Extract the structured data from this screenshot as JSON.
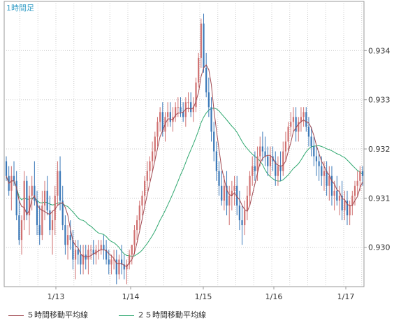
{
  "chart_data": {
    "type": "candlestick",
    "title": "1時間足",
    "x_tick_labels": [
      "1/13",
      "1/14",
      "1/15",
      "1/16",
      "1/17"
    ],
    "y_tick_labels": [
      "0.934",
      "0.933",
      "0.932",
      "0.931",
      "0.930"
    ],
    "y_ticks": [
      0.934,
      0.933,
      0.932,
      0.931,
      0.93
    ],
    "ylim": [
      0.9292,
      0.935
    ],
    "grid": true,
    "legend_position": "bottom-left",
    "series": [
      {
        "name": "５時間移動平均線",
        "color": "#a04850"
      },
      {
        "name": "２５時間移動平均線",
        "color": "#30a870"
      }
    ],
    "colors": {
      "up": "#d07070",
      "down": "#3a78b8",
      "grid": "#cccccc",
      "axis": "#999999"
    },
    "candles": [
      [
        0.93175,
        0.93185,
        0.93135,
        0.93145
      ],
      [
        0.93145,
        0.93165,
        0.93105,
        0.93115
      ],
      [
        0.93115,
        0.93165,
        0.93075,
        0.93145
      ],
      [
        0.93145,
        0.93175,
        0.93125,
        0.93135
      ],
      [
        0.93135,
        0.93155,
        0.93055,
        0.93065
      ],
      [
        0.93065,
        0.93095,
        0.93005,
        0.93015
      ],
      [
        0.93015,
        0.93065,
        0.92985,
        0.93055
      ],
      [
        0.93055,
        0.93155,
        0.93035,
        0.93135
      ],
      [
        0.93135,
        0.93145,
        0.93055,
        0.93065
      ],
      [
        0.93065,
        0.93125,
        0.93025,
        0.93105
      ],
      [
        0.93105,
        0.93145,
        0.93075,
        0.93125
      ],
      [
        0.93125,
        0.93175,
        0.93085,
        0.93095
      ],
      [
        0.93095,
        0.93115,
        0.93025,
        0.93045
      ],
      [
        0.93045,
        0.93085,
        0.93005,
        0.93025
      ],
      [
        0.93025,
        0.93115,
        0.93015,
        0.93085
      ],
      [
        0.93085,
        0.93135,
        0.93055,
        0.93115
      ],
      [
        0.93115,
        0.93145,
        0.93065,
        0.93075
      ],
      [
        0.93075,
        0.93105,
        0.93025,
        0.93035
      ],
      [
        0.93035,
        0.93075,
        0.92985,
        0.93055
      ],
      [
        0.93055,
        0.93125,
        0.93025,
        0.93105
      ],
      [
        0.93105,
        0.93175,
        0.93085,
        0.93155
      ],
      [
        0.93155,
        0.93185,
        0.93075,
        0.93095
      ],
      [
        0.93095,
        0.93125,
        0.93035,
        0.93045
      ],
      [
        0.93045,
        0.93065,
        0.92985,
        0.93005
      ],
      [
        0.93005,
        0.93045,
        0.92975,
        0.93025
      ],
      [
        0.93025,
        0.93055,
        0.92995,
        0.93015
      ],
      [
        0.93015,
        0.93035,
        0.92955,
        0.92975
      ],
      [
        0.92975,
        0.93015,
        0.92935,
        0.92995
      ],
      [
        0.92995,
        0.93015,
        0.92965,
        0.92985
      ],
      [
        0.92985,
        0.93005,
        0.92945,
        0.92965
      ],
      [
        0.92965,
        0.93005,
        0.92945,
        0.92985
      ],
      [
        0.92985,
        0.93005,
        0.92955,
        0.92975
      ],
      [
        0.92975,
        0.93005,
        0.92945,
        0.92995
      ],
      [
        0.92995,
        0.93005,
        0.92975,
        0.92995
      ],
      [
        0.92995,
        0.93015,
        0.92965,
        0.92985
      ],
      [
        0.92985,
        0.93005,
        0.92965,
        0.92995
      ],
      [
        0.92995,
        0.93015,
        0.92975,
        0.92995
      ],
      [
        0.92995,
        0.93015,
        0.92985,
        0.93005
      ],
      [
        0.93005,
        0.93025,
        0.92975,
        0.92995
      ],
      [
        0.92995,
        0.93015,
        0.92965,
        0.92975
      ],
      [
        0.92975,
        0.92995,
        0.92945,
        0.92965
      ],
      [
        0.92965,
        0.92985,
        0.92945,
        0.92975
      ],
      [
        0.92975,
        0.92995,
        0.92955,
        0.92975
      ],
      [
        0.92975,
        0.92995,
        0.92925,
        0.92945
      ],
      [
        0.92945,
        0.92985,
        0.92935,
        0.92975
      ],
      [
        0.92975,
        0.93005,
        0.92945,
        0.92965
      ],
      [
        0.92965,
        0.92985,
        0.92935,
        0.92955
      ],
      [
        0.92955,
        0.92975,
        0.92925,
        0.92965
      ],
      [
        0.92965,
        0.92995,
        0.92955,
        0.92985
      ],
      [
        0.92985,
        0.93005,
        0.92965,
        0.93005
      ],
      [
        0.93005,
        0.93045,
        0.92985,
        0.93035
      ],
      [
        0.93035,
        0.93065,
        0.93015,
        0.93055
      ],
      [
        0.93055,
        0.93095,
        0.93035,
        0.93085
      ],
      [
        0.93085,
        0.93115,
        0.93065,
        0.93105
      ],
      [
        0.93105,
        0.93145,
        0.93085,
        0.93135
      ],
      [
        0.93135,
        0.93175,
        0.93115,
        0.93155
      ],
      [
        0.93155,
        0.93185,
        0.93135,
        0.93175
      ],
      [
        0.93175,
        0.93215,
        0.93155,
        0.93195
      ],
      [
        0.93195,
        0.93235,
        0.93175,
        0.93225
      ],
      [
        0.93225,
        0.93265,
        0.93205,
        0.93255
      ],
      [
        0.93255,
        0.93285,
        0.93235,
        0.93275
      ],
      [
        0.93275,
        0.93295,
        0.93225,
        0.93235
      ],
      [
        0.93235,
        0.93275,
        0.93215,
        0.93265
      ],
      [
        0.93265,
        0.93295,
        0.93245,
        0.93275
      ],
      [
        0.93275,
        0.93295,
        0.93245,
        0.93255
      ],
      [
        0.93255,
        0.93285,
        0.93235,
        0.93265
      ],
      [
        0.93265,
        0.93295,
        0.93255,
        0.93285
      ],
      [
        0.93285,
        0.93305,
        0.93265,
        0.93285
      ],
      [
        0.93285,
        0.93305,
        0.93265,
        0.93275
      ],
      [
        0.93275,
        0.93295,
        0.93255,
        0.93265
      ],
      [
        0.93265,
        0.93305,
        0.93245,
        0.93295
      ],
      [
        0.93295,
        0.93315,
        0.93275,
        0.93295
      ],
      [
        0.93295,
        0.93315,
        0.93265,
        0.93275
      ],
      [
        0.93275,
        0.93305,
        0.93255,
        0.93285
      ],
      [
        0.93285,
        0.93345,
        0.93275,
        0.93335
      ],
      [
        0.93335,
        0.93395,
        0.93325,
        0.93385
      ],
      [
        0.93385,
        0.93465,
        0.93365,
        0.93455
      ],
      [
        0.93455,
        0.93475,
        0.93355,
        0.93365
      ],
      [
        0.93365,
        0.93395,
        0.93305,
        0.93315
      ],
      [
        0.93315,
        0.93345,
        0.93265,
        0.93285
      ],
      [
        0.93285,
        0.93305,
        0.93215,
        0.93235
      ],
      [
        0.93235,
        0.93255,
        0.93175,
        0.93195
      ],
      [
        0.93195,
        0.93215,
        0.93135,
        0.93155
      ],
      [
        0.93155,
        0.93175,
        0.93105,
        0.93125
      ],
      [
        0.93125,
        0.93155,
        0.93085,
        0.93095
      ],
      [
        0.93095,
        0.93145,
        0.93075,
        0.93125
      ],
      [
        0.93125,
        0.93155,
        0.93065,
        0.93085
      ],
      [
        0.93085,
        0.93125,
        0.93045,
        0.93105
      ],
      [
        0.93105,
        0.93135,
        0.93075,
        0.93115
      ],
      [
        0.93115,
        0.93145,
        0.93085,
        0.93125
      ],
      [
        0.93125,
        0.93145,
        0.93065,
        0.93085
      ],
      [
        0.93085,
        0.93115,
        0.93035,
        0.93055
      ],
      [
        0.93055,
        0.93085,
        0.93005,
        0.93045
      ],
      [
        0.93045,
        0.93095,
        0.93025,
        0.93075
      ],
      [
        0.93075,
        0.93125,
        0.93055,
        0.93105
      ],
      [
        0.93105,
        0.93155,
        0.93085,
        0.93145
      ],
      [
        0.93145,
        0.93185,
        0.93125,
        0.93165
      ],
      [
        0.93165,
        0.93195,
        0.93135,
        0.93155
      ],
      [
        0.93155,
        0.93205,
        0.93135,
        0.93185
      ],
      [
        0.93185,
        0.93225,
        0.93165,
        0.93205
      ],
      [
        0.93205,
        0.93235,
        0.93175,
        0.93195
      ],
      [
        0.93195,
        0.93225,
        0.93165,
        0.93185
      ],
      [
        0.93185,
        0.93205,
        0.93145,
        0.93165
      ],
      [
        0.93165,
        0.93205,
        0.93145,
        0.93185
      ],
      [
        0.93185,
        0.93205,
        0.93155,
        0.93175
      ],
      [
        0.93175,
        0.93195,
        0.93125,
        0.93145
      ],
      [
        0.93145,
        0.93185,
        0.93125,
        0.93165
      ],
      [
        0.93165,
        0.93195,
        0.93135,
        0.93155
      ],
      [
        0.93155,
        0.93215,
        0.93145,
        0.93195
      ],
      [
        0.93195,
        0.93235,
        0.93175,
        0.93215
      ],
      [
        0.93215,
        0.93255,
        0.93195,
        0.93245
      ],
      [
        0.93245,
        0.93275,
        0.93225,
        0.93255
      ],
      [
        0.93255,
        0.93285,
        0.93235,
        0.93265
      ],
      [
        0.93265,
        0.93285,
        0.93215,
        0.93235
      ],
      [
        0.93235,
        0.93265,
        0.93215,
        0.93255
      ],
      [
        0.93255,
        0.93285,
        0.93235,
        0.93265
      ],
      [
        0.93265,
        0.93285,
        0.93245,
        0.93275
      ],
      [
        0.93275,
        0.93285,
        0.93235,
        0.93245
      ],
      [
        0.93245,
        0.93265,
        0.93205,
        0.93225
      ],
      [
        0.93225,
        0.93245,
        0.93185,
        0.93205
      ],
      [
        0.93205,
        0.93225,
        0.93165,
        0.93185
      ],
      [
        0.93185,
        0.93205,
        0.93145,
        0.93175
      ],
      [
        0.93175,
        0.93195,
        0.93135,
        0.93165
      ],
      [
        0.93165,
        0.93185,
        0.93125,
        0.93145
      ],
      [
        0.93145,
        0.93175,
        0.93115,
        0.93155
      ],
      [
        0.93155,
        0.93175,
        0.93105,
        0.93125
      ],
      [
        0.93125,
        0.93165,
        0.93095,
        0.93145
      ],
      [
        0.93145,
        0.93165,
        0.93085,
        0.93105
      ],
      [
        0.93105,
        0.93135,
        0.93075,
        0.93115
      ],
      [
        0.93115,
        0.93145,
        0.93085,
        0.93095
      ],
      [
        0.93095,
        0.93125,
        0.93065,
        0.93105
      ],
      [
        0.93105,
        0.93135,
        0.93055,
        0.93075
      ],
      [
        0.93075,
        0.93115,
        0.93055,
        0.93095
      ],
      [
        0.93095,
        0.93115,
        0.93045,
        0.93065
      ],
      [
        0.93065,
        0.93095,
        0.93045,
        0.93085
      ],
      [
        0.93085,
        0.93115,
        0.93065,
        0.93105
      ],
      [
        0.93105,
        0.93135,
        0.93085,
        0.93125
      ],
      [
        0.93125,
        0.93155,
        0.93105,
        0.93135
      ],
      [
        0.93135,
        0.93165,
        0.93115,
        0.93155
      ],
      [
        0.93155,
        0.93165,
        0.93125,
        0.93145
      ]
    ]
  }
}
